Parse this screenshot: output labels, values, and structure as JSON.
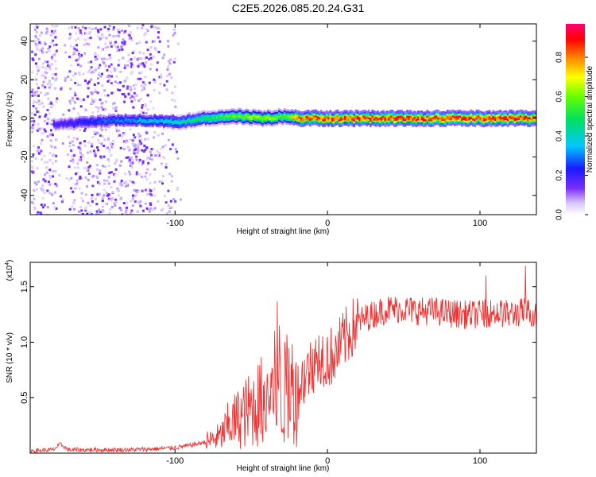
{
  "title": "C2E5.2026.085.20.24.G31",
  "colors": {
    "snr_line": "#ee3333",
    "spectrogram_dark": "#4a0ee0",
    "spectrogram_light": "#c9a8ff",
    "axis": "#000000"
  },
  "colorbar": {
    "label": "Normalized spectral amplitude",
    "ticks": [
      "0.0",
      "0.2",
      "0.4",
      "0.6",
      "0.8"
    ],
    "tick_values": [
      0.0,
      0.2,
      0.4,
      0.6,
      0.8
    ],
    "range": [
      0,
      0.97
    ],
    "colormap": "rainbow (violet-blue-cyan-green-yellow-red-magenta)"
  },
  "chart_data": [
    {
      "type": "heatmap",
      "xlabel": "Height of straight line (km)",
      "ylabel": "Frequency (Hz)",
      "xlim": [
        -195,
        137
      ],
      "ylim": [
        -50,
        49
      ],
      "xticks": [
        -100,
        0,
        100
      ],
      "xtick_labels": [
        "-100",
        "0",
        "100"
      ],
      "yticks": [
        -40,
        -20,
        0,
        20,
        40
      ],
      "ytick_labels": [
        "-40",
        "-20",
        "0",
        "20",
        "40"
      ],
      "grid": false,
      "trace": {
        "description_points_height_km": [
          -175,
          -160,
          -140,
          -120,
          -100,
          -80,
          -60,
          -40,
          -30,
          -20,
          0,
          20,
          40,
          60,
          80,
          100,
          120,
          135
        ],
        "center_frequency_hz": [
          -3,
          -2,
          -1,
          -1,
          -2,
          0,
          1,
          0,
          1,
          0,
          0,
          0,
          0,
          0,
          0,
          0,
          0,
          0
        ],
        "peak_amplitude": [
          0.2,
          0.25,
          0.3,
          0.35,
          0.4,
          0.5,
          0.6,
          0.7,
          0.55,
          0.85,
          0.9,
          0.9,
          0.92,
          0.9,
          0.92,
          0.93,
          0.92,
          0.9
        ]
      }
    },
    {
      "type": "line",
      "xlabel": "Height of straight line (km)",
      "ylabel": "SNR (10 * v/v)",
      "y_multiplier_label": "(x10",
      "y_multiplier_exp": "4",
      "xlim": [
        -195,
        137
      ],
      "ylim": [
        0,
        1.72
      ],
      "xticks": [
        -100,
        0,
        100
      ],
      "xtick_labels": [
        "-100",
        "0",
        "100"
      ],
      "yticks": [
        0.5,
        1.0,
        1.5
      ],
      "ytick_labels": [
        "0.5",
        "1.0",
        "1.5"
      ],
      "grid": false,
      "series": [
        {
          "x": [
            -195,
            -180,
            -175,
            -170,
            -150,
            -130,
            -110,
            -100,
            -90,
            -80,
            -70,
            -65,
            -60,
            -55,
            -50,
            -45,
            -40,
            -35,
            -33,
            -30,
            -25,
            -20,
            -15,
            -10,
            -5,
            0,
            5,
            10,
            15,
            20,
            25,
            30,
            35,
            40,
            50,
            60,
            70,
            80,
            90,
            100,
            110,
            120,
            130,
            137
          ],
          "y": [
            0.02,
            0.03,
            0.08,
            0.03,
            0.03,
            0.03,
            0.04,
            0.05,
            0.07,
            0.1,
            0.15,
            0.25,
            0.3,
            0.35,
            0.4,
            0.45,
            0.5,
            0.55,
            0.8,
            0.5,
            0.6,
            0.55,
            0.7,
            0.8,
            0.9,
            0.85,
            0.9,
            1.0,
            1.1,
            1.18,
            1.22,
            1.25,
            1.28,
            1.3,
            1.3,
            1.28,
            1.28,
            1.26,
            1.25,
            1.25,
            1.27,
            1.25,
            1.28,
            1.25
          ]
        }
      ]
    }
  ]
}
